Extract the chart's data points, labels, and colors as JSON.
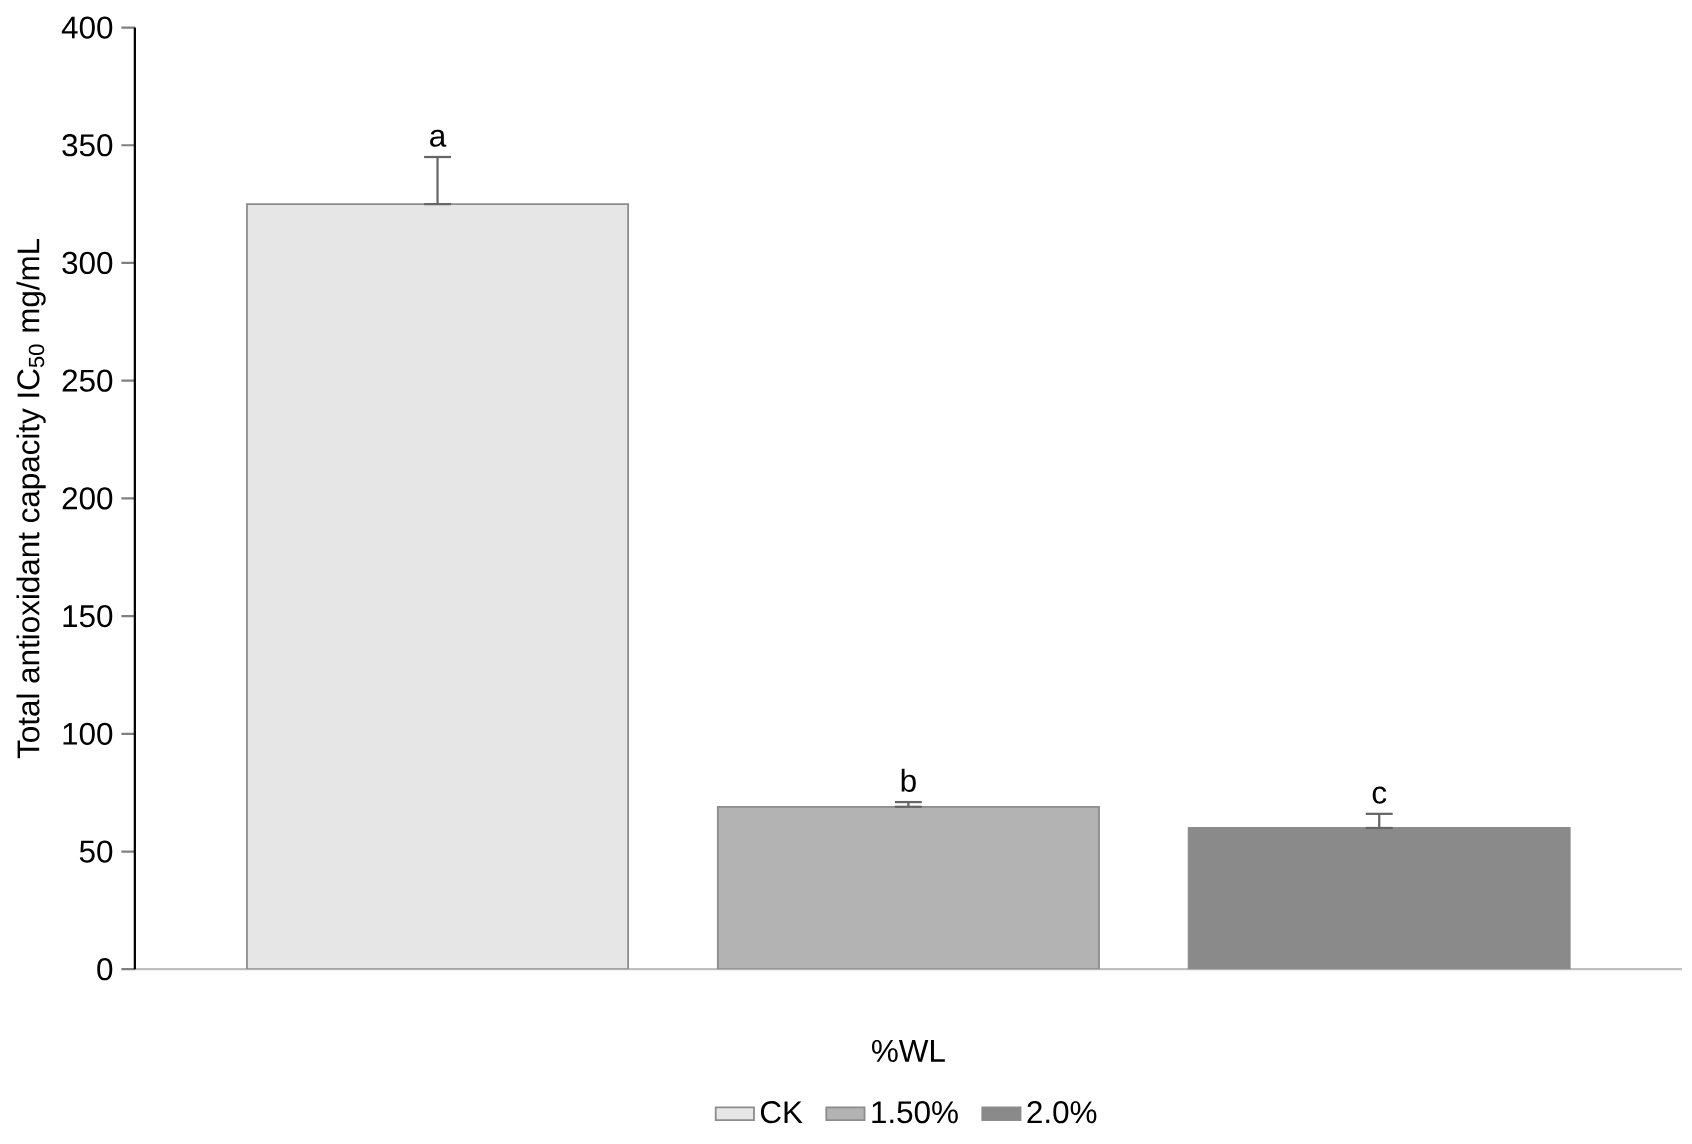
{
  "chart_data": {
    "type": "bar",
    "ylabel": "Total antioxidant capacity IC$_{50}$ mg/mL",
    "categories": [
      "%WL"
    ],
    "series": [
      {
        "name": "CK",
        "color": "#e6e6e6",
        "values": [
          325
        ],
        "errors": [
          [
            325,
            345
          ]
        ]
      },
      {
        "name": "1.50%",
        "color": "#b3b3b3",
        "values": [
          69
        ],
        "errors": [
          [
            69,
            71
          ]
        ]
      },
      {
        "name": "2.0%",
        "color": "#8a8a8a",
        "values": [
          60
        ],
        "errors": [
          [
            60,
            66
          ]
        ]
      }
    ],
    "annotations": [
      "a",
      "b",
      "c"
    ],
    "ylim": [
      0,
      400
    ],
    "yticks": [
      0,
      50,
      100,
      150,
      200,
      250,
      300,
      350,
      400
    ],
    "grid": false,
    "legend": "bottom"
  }
}
